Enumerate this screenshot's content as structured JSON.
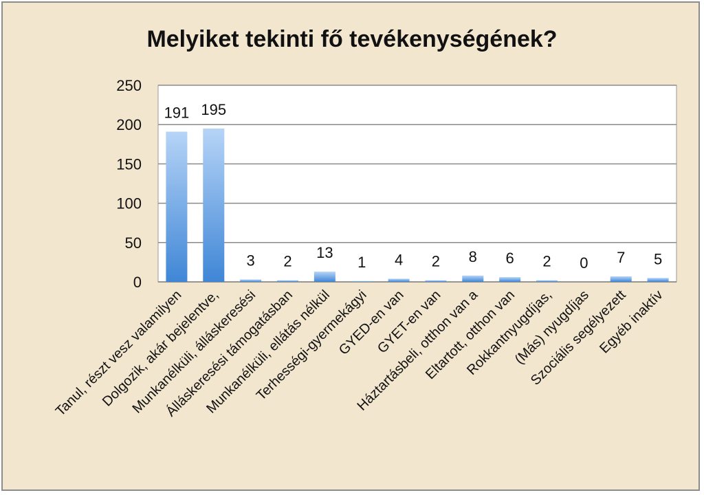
{
  "chart_data": {
    "type": "bar",
    "title": "Melyiket tekinti fő tevékenységének?",
    "xlabel": "",
    "ylabel": "",
    "ylim": [
      0,
      250
    ],
    "yticks": [
      0,
      50,
      100,
      150,
      200,
      250
    ],
    "grid": true,
    "legend": "none",
    "categories": [
      "Tanul, részt vesz valamilyen",
      "Dolgozik, akár bejelentve,",
      "Munkanélküli, álláskeresési",
      "Álláskeresési támogatásban",
      "Munkanélküli, ellátás nélkül",
      "Terhességi-gyermekágyi",
      "GYED-en van",
      "GYET-en van",
      "Háztartásbeli, otthon van a",
      "Eltartott, otthon van",
      "Rokkantnyugdíjas,",
      "(Más) nyugdíjas",
      "Szociális segélyezett",
      "Egyéb inaktív"
    ],
    "values": [
      191,
      195,
      3,
      2,
      13,
      1,
      4,
      2,
      8,
      6,
      2,
      0,
      7,
      5
    ],
    "colors": {
      "background": "#f3e6cf",
      "plot": "#ffffff",
      "bar_top": "#b6d4f7",
      "bar_bottom": "#3f86d6",
      "grid": "#8a8a8a"
    }
  }
}
